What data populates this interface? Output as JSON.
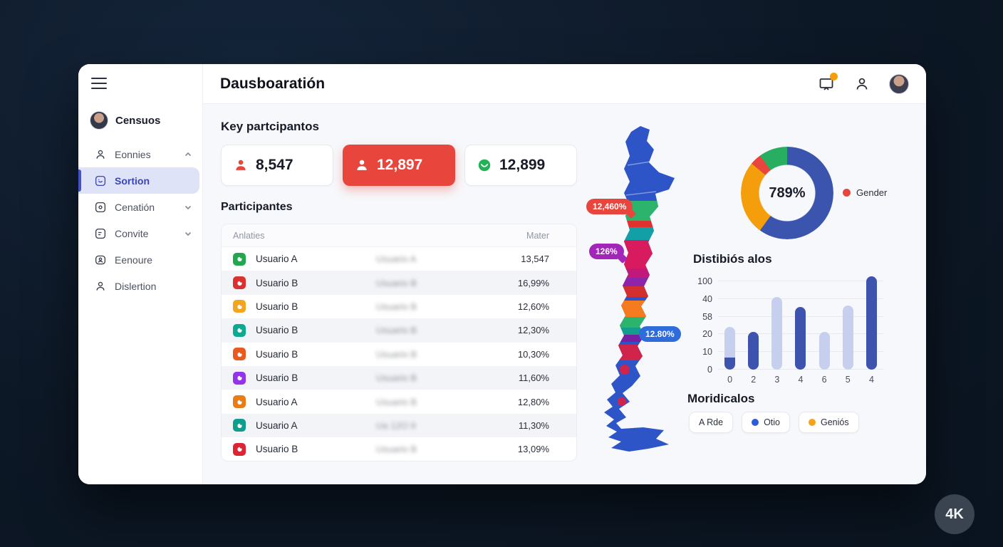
{
  "app": {
    "background": "#0d1826",
    "card_bg": "#ffffff",
    "content_bg": "#f7f8fb"
  },
  "badge": {
    "label": "4K"
  },
  "header": {
    "title": "Dausboaratión",
    "notification_color": "#f59e0b"
  },
  "sidebar": {
    "user": {
      "name": "Censuos"
    },
    "active_color": "#3f4ec4",
    "items": [
      {
        "label": "Eonnies"
      },
      {
        "label": "Sortion"
      },
      {
        "label": "Cenatión"
      },
      {
        "label": "Convite"
      },
      {
        "label": "Eenoure"
      },
      {
        "label": "Dislertion"
      }
    ]
  },
  "stats": {
    "section_title": "Key partcipantos",
    "cards": [
      {
        "value": "8,547",
        "icon": "user-icon",
        "accent": "#e8453c",
        "highlighted": false
      },
      {
        "value": "12,897",
        "icon": "user-icon",
        "accent": "#e8453c",
        "highlighted": true
      },
      {
        "value": "12,899",
        "icon": "smiley-icon",
        "accent": "#22b358",
        "highlighted": false
      }
    ]
  },
  "table": {
    "section_title": "Participantes",
    "columns": [
      "Anlaties",
      "Mater"
    ],
    "rows": [
      {
        "icon_color": "#21a74e",
        "name": "Usuario A",
        "blurred": "Usuario A",
        "value": "13,547"
      },
      {
        "icon_color": "#d93030",
        "name": "Usuario B",
        "blurred": "Usuario B",
        "value": "16,99%"
      },
      {
        "icon_color": "#f2a51d",
        "name": "Usuario B",
        "blurred": "Usuario B",
        "value": "12,60%"
      },
      {
        "icon_color": "#0ca993",
        "name": "Usuario B",
        "blurred": "Usuario B",
        "value": "12,30%"
      },
      {
        "icon_color": "#e85a1f",
        "name": "Usuario B",
        "blurred": "Usuario B",
        "value": "10,30%"
      },
      {
        "icon_color": "#9333ea",
        "name": "Usuario B",
        "blurred": "Usuario B",
        "value": "11,60%"
      },
      {
        "icon_color": "#e87d16",
        "name": "Usuario A",
        "blurred": "Usuario B",
        "value": "12,80%"
      },
      {
        "icon_color": "#0f9e8e",
        "name": "Usuario A",
        "blurred": "Ua 12O 9",
        "value": "11,30%"
      },
      {
        "icon_color": "#dc2633",
        "name": "Usuario B",
        "blurred": "Usuario B",
        "value": "13,09%"
      }
    ]
  },
  "map": {
    "base_color": "#2e55c8",
    "region_colors": [
      "#2db46c",
      "#e03131",
      "#129fa5",
      "#d81b5f",
      "#c2187a",
      "#8e24aa",
      "#d32f2f",
      "#f57c1e",
      "#2db46c",
      "#139e8c",
      "#7b1fa2",
      "#d0244a",
      "#d0244a",
      "#d0244a",
      "#d0244a"
    ],
    "bubbles": [
      {
        "label": "12,460%",
        "color": "#e8453c"
      },
      {
        "label": "126%",
        "color": "#a226b8"
      },
      {
        "label": "12.80%",
        "color": "#2e6bdb"
      }
    ]
  },
  "chart_data": [
    {
      "type": "pie",
      "center_label": "789%",
      "legend": [
        {
          "label": "Gender",
          "color": "#e8453c"
        }
      ],
      "legend_position": "right",
      "segments": [
        {
          "name": "blue",
          "color": "#3b55ae",
          "pct": 60
        },
        {
          "name": "orange",
          "color": "#f59e0b",
          "pct": 26
        },
        {
          "name": "red",
          "color": "#e8453c",
          "pct": 4
        },
        {
          "name": "green",
          "color": "#27ae60",
          "pct": 10
        }
      ]
    },
    {
      "type": "bar",
      "title": "Distibiós alos",
      "categories": [
        "0",
        "2",
        "3",
        "4",
        "6",
        "5",
        "4"
      ],
      "values": [
        50,
        44,
        85,
        73,
        44,
        75,
        109
      ],
      "sub_values": [
        14,
        0,
        0,
        0,
        0,
        0,
        0
      ],
      "bar_styles": [
        "light",
        "dark",
        "light",
        "dark",
        "light",
        "light",
        "dark"
      ],
      "color_dark": "#3d53ad",
      "color_light": "#c6d0ee",
      "y_ticks": [
        "100",
        "40",
        "58",
        "20",
        "10",
        "0"
      ],
      "ymax": 112,
      "grid": true
    }
  ],
  "filters": {
    "title": "Moridicalos",
    "chips": [
      {
        "label": "A Rde",
        "dot": null
      },
      {
        "label": "Otio",
        "dot": "#2e5bd7"
      },
      {
        "label": "Geniós",
        "dot": "#f5a31d"
      }
    ]
  }
}
